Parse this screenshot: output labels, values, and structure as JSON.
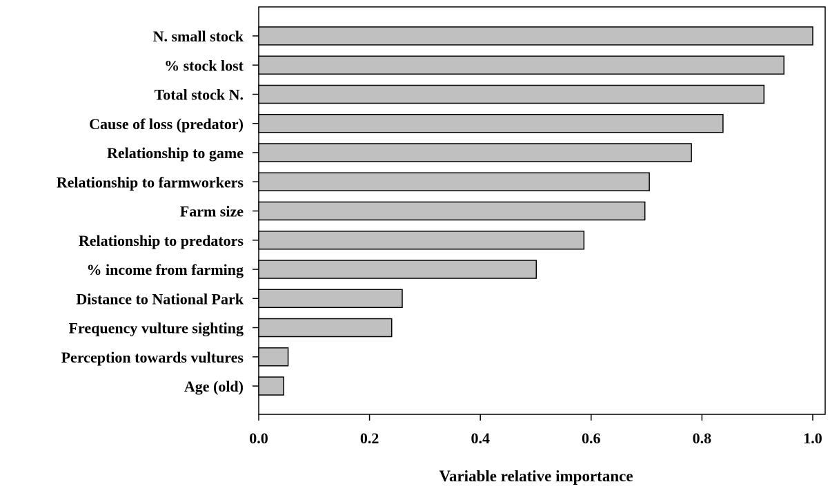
{
  "chart_data": {
    "type": "bar",
    "orientation": "horizontal",
    "categories": [
      "N. small stock",
      "% stock lost",
      "Total stock N.",
      "Cause of loss (predator)",
      "Relationship to game",
      "Relationship to farmworkers",
      "Farm size",
      "Relationship to predators",
      "% income from farming",
      "Distance to National Park",
      "Frequency vulture sighting",
      "Perception towards vultures",
      "Age (old)"
    ],
    "values": [
      1.0,
      0.948,
      0.912,
      0.838,
      0.781,
      0.705,
      0.697,
      0.587,
      0.501,
      0.259,
      0.24,
      0.053,
      0.045
    ],
    "xlabel": "Variable relative importance",
    "ylabel": "",
    "xlim": [
      0.0,
      1.0
    ],
    "xticks": [
      "0.0",
      "0.2",
      "0.4",
      "0.6",
      "0.8",
      "1.0"
    ],
    "grid": false,
    "bar_color": "#c0c0c0",
    "bar_edge_color": "#000000"
  }
}
